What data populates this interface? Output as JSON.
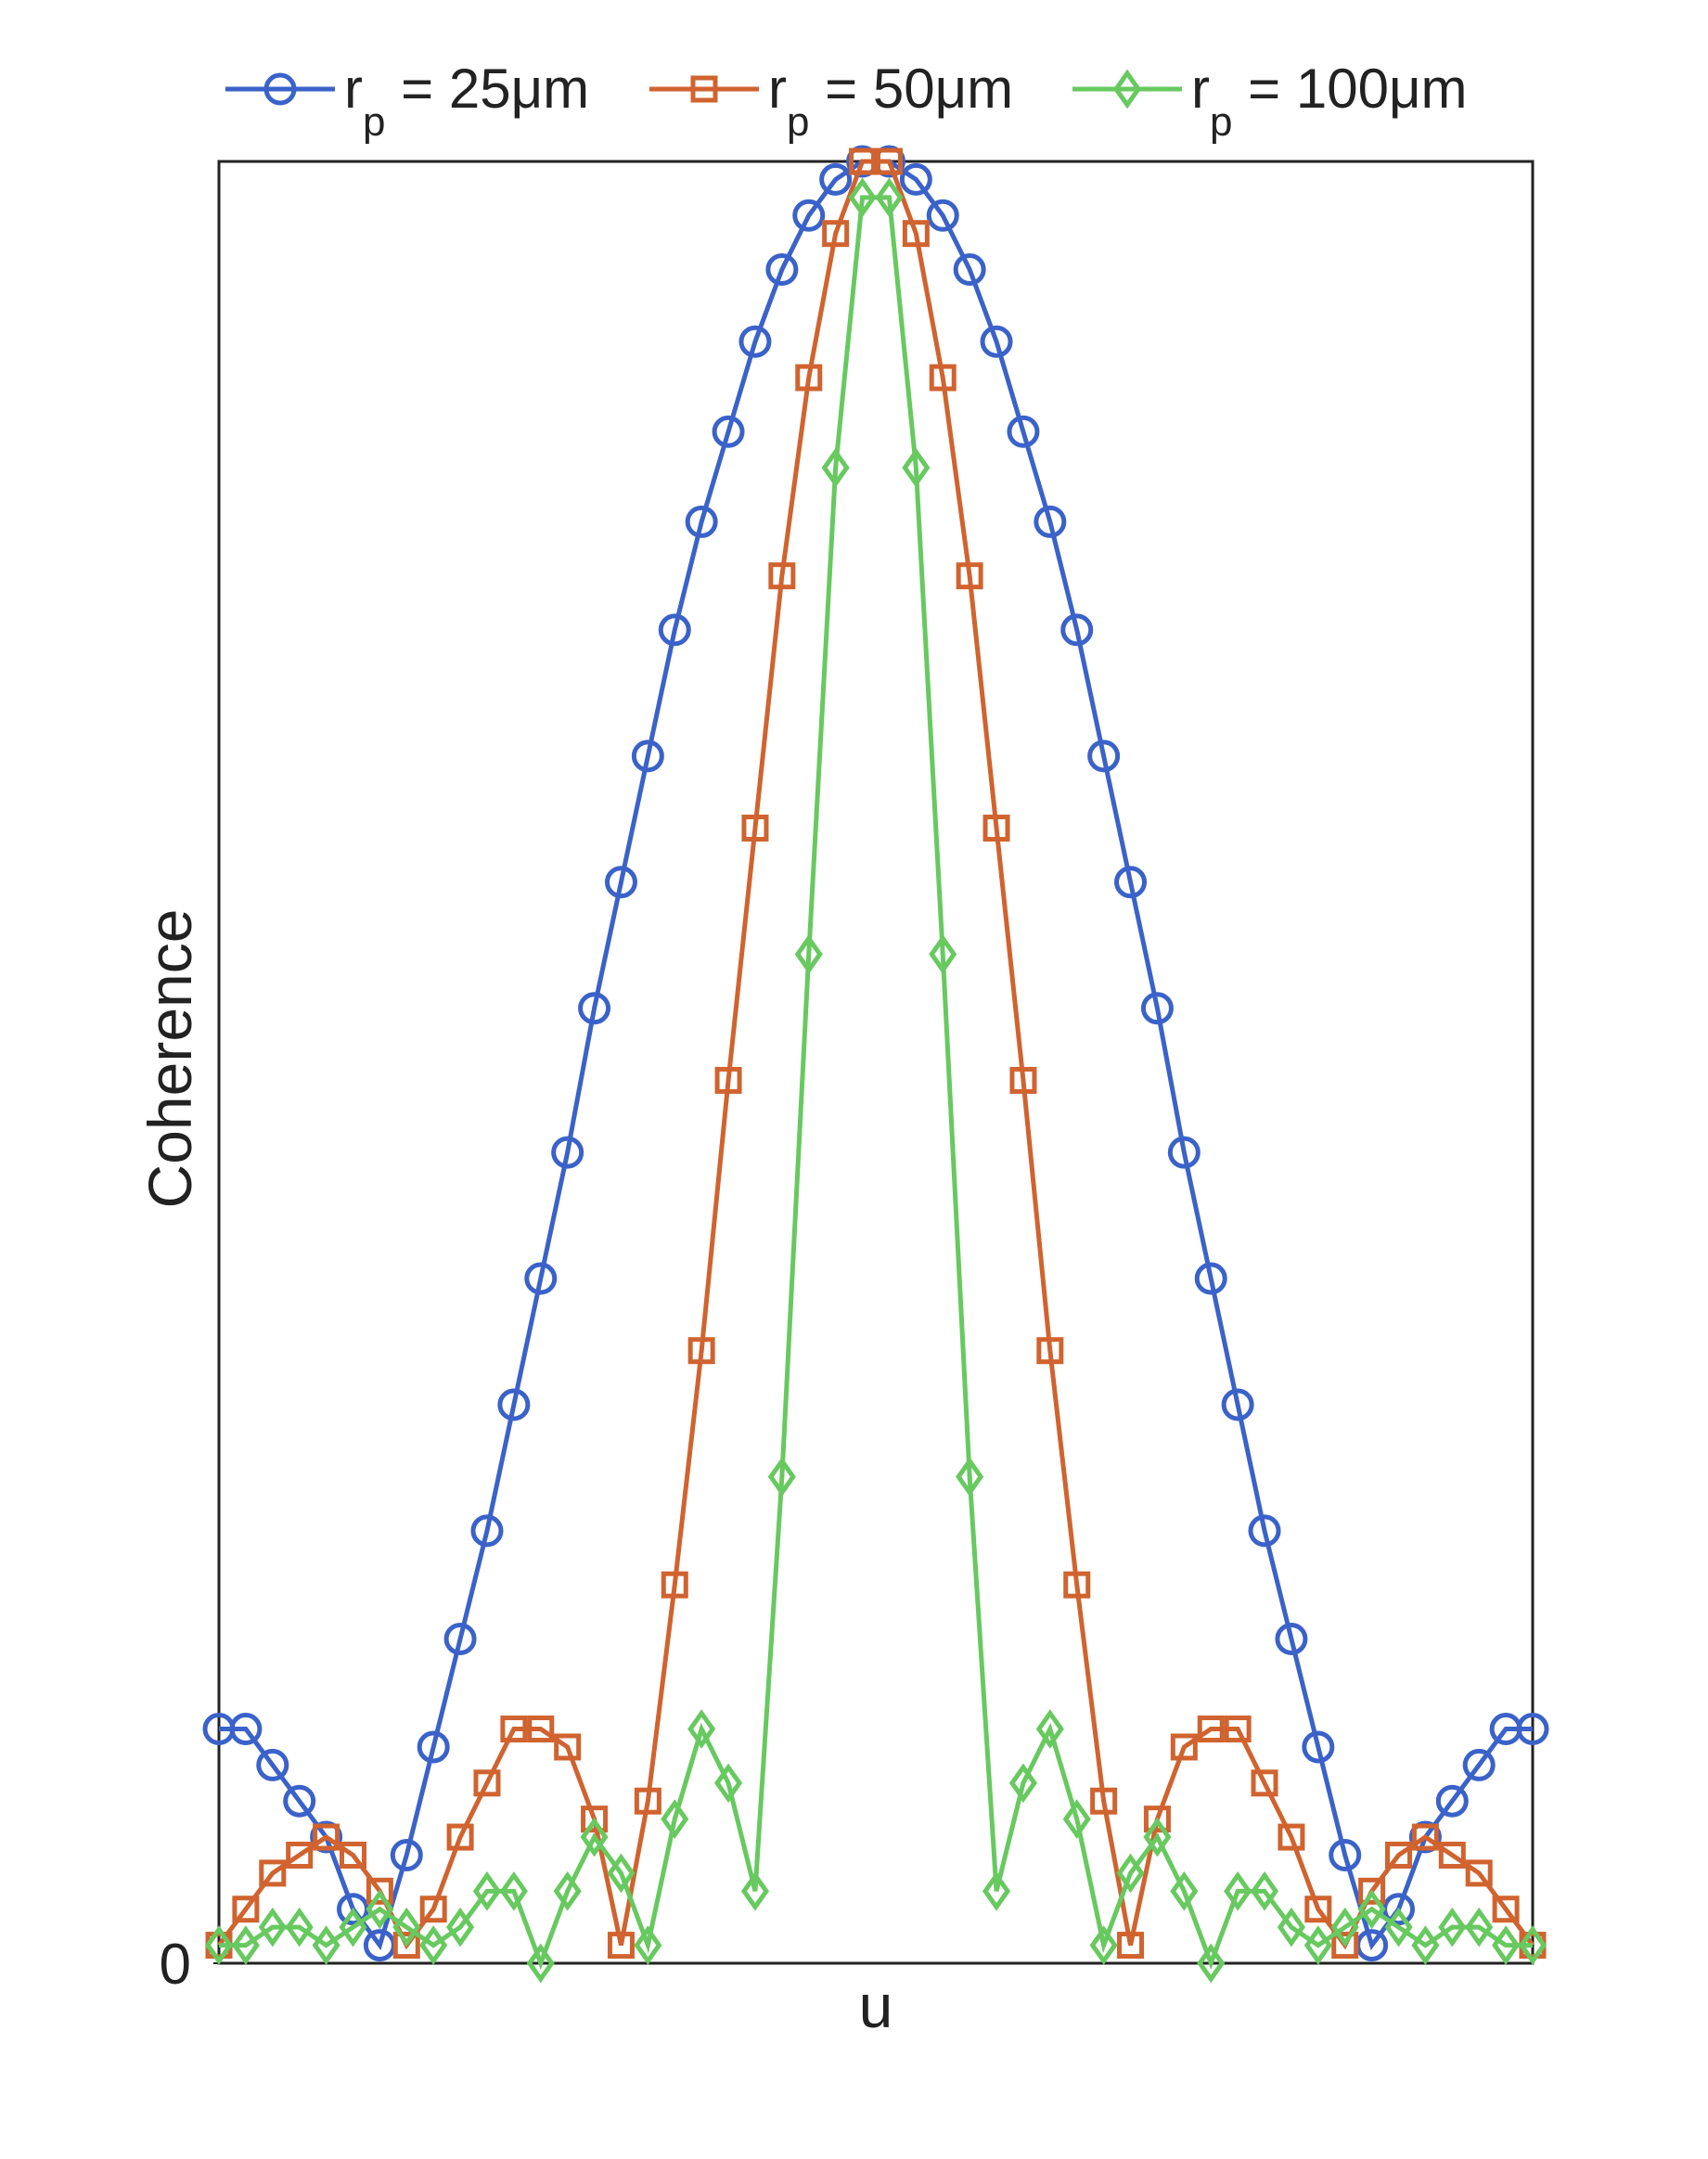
{
  "chart_data": {
    "type": "line",
    "categories": [
      null,
      null,
      null,
      null,
      null,
      null,
      null,
      null,
      null,
      null,
      null,
      null,
      null,
      null,
      null,
      null,
      null,
      null,
      null,
      null,
      null,
      null,
      null,
      null,
      null,
      null,
      null,
      null,
      null,
      null,
      null,
      null,
      null,
      null,
      null,
      null,
      null,
      null,
      null,
      null,
      null,
      null,
      null,
      null,
      null,
      null,
      null,
      null,
      null,
      null
    ],
    "xlabel": "u",
    "ylabel": "Coherence",
    "ylim": [
      0,
      1
    ],
    "yticks": [
      0
    ],
    "legend": "top",
    "series": [
      {
        "name": "rp = 25μm",
        "color": "#3a62c9",
        "marker": "circle",
        "values": [
          0.13,
          0.13,
          0.11,
          0.09,
          0.07,
          0.03,
          0.01,
          0.06,
          0.12,
          0.18,
          0.24,
          0.31,
          0.38,
          0.45,
          0.53,
          0.6,
          0.67,
          0.74,
          0.8,
          0.85,
          0.9,
          0.94,
          0.97,
          0.99,
          1.0,
          1.0,
          0.99,
          0.97,
          0.94,
          0.9,
          0.85,
          0.8,
          0.74,
          0.67,
          0.6,
          0.53,
          0.45,
          0.38,
          0.31,
          0.24,
          0.18,
          0.12,
          0.06,
          0.01,
          0.03,
          0.07,
          0.09,
          0.11,
          0.13,
          0.13
        ]
      },
      {
        "name": "rp = 50μm",
        "color": "#d0632f",
        "marker": "square",
        "values": [
          0.01,
          0.03,
          0.05,
          0.06,
          0.07,
          0.06,
          0.04,
          0.01,
          0.03,
          0.07,
          0.1,
          0.13,
          0.13,
          0.12,
          0.08,
          0.01,
          0.09,
          0.21,
          0.34,
          0.49,
          0.63,
          0.77,
          0.88,
          0.96,
          1.0,
          1.0,
          0.96,
          0.88,
          0.77,
          0.63,
          0.49,
          0.34,
          0.21,
          0.09,
          0.01,
          0.08,
          0.12,
          0.13,
          0.13,
          0.1,
          0.07,
          0.03,
          0.01,
          0.04,
          0.06,
          0.07,
          0.06,
          0.05,
          0.03,
          0.01
        ]
      },
      {
        "name": "rp = 100μm",
        "color": "#67c95f",
        "marker": "diamond",
        "values": [
          0.01,
          0.01,
          0.02,
          0.02,
          0.01,
          0.02,
          0.03,
          0.02,
          0.01,
          0.02,
          0.04,
          0.04,
          0.0,
          0.04,
          0.07,
          0.05,
          0.01,
          0.08,
          0.13,
          0.1,
          0.04,
          0.27,
          0.56,
          0.83,
          0.98,
          0.98,
          0.83,
          0.56,
          0.27,
          0.04,
          0.1,
          0.13,
          0.08,
          0.01,
          0.05,
          0.07,
          0.04,
          0.0,
          0.04,
          0.04,
          0.02,
          0.01,
          0.02,
          0.03,
          0.02,
          0.01,
          0.02,
          0.02,
          0.01,
          0.01
        ]
      }
    ]
  }
}
